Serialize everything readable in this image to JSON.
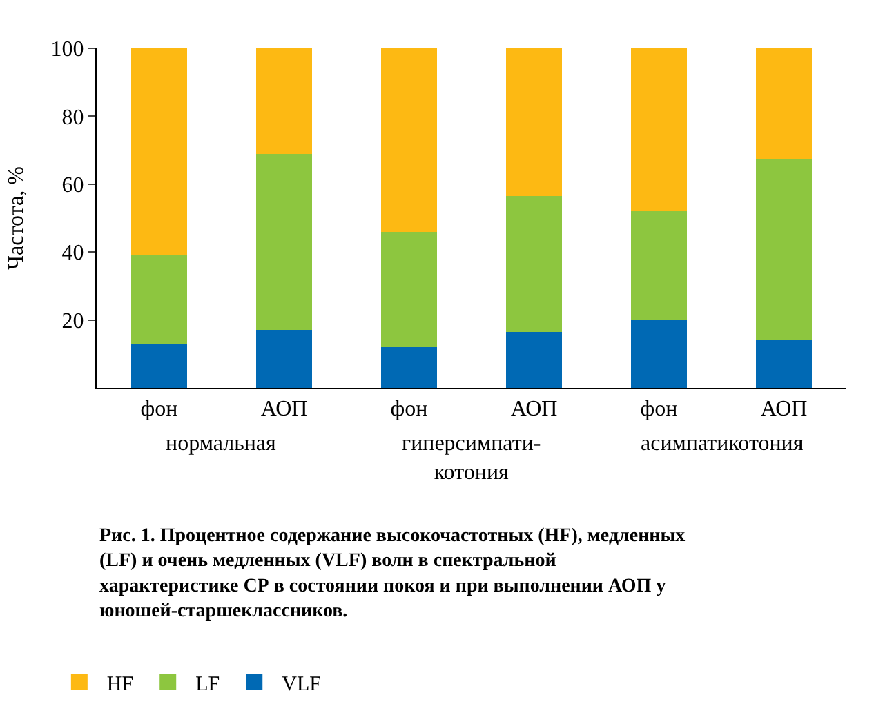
{
  "chart_data": {
    "type": "bar",
    "stacked": true,
    "ylabel": "Частота, %",
    "categories": [
      "фон",
      "АОП",
      "фон",
      "АОП",
      "фон",
      "АОП"
    ],
    "series": [
      {
        "name": "VLF",
        "color": "#0069b4",
        "values": [
          13,
          17,
          12,
          16.5,
          20,
          14
        ]
      },
      {
        "name": "LF",
        "color": "#8dc63f",
        "values": [
          26,
          52,
          34,
          40,
          32,
          53.5
        ]
      },
      {
        "name": "HF",
        "color": "#fdb913",
        "values": [
          61,
          31,
          54,
          43.5,
          48,
          32.5
        ]
      }
    ],
    "ylim": [
      0,
      100
    ],
    "yticks": [
      20,
      40,
      60,
      80,
      100
    ],
    "legend": "bottom",
    "annotations": [
      "нормальная",
      "гиперсимпати-котония",
      "асимпатикотония",
      "Рис. 1. Процентное содержание высокочастотных (HF), медленных (LF) и очень медленных (VLF) волн в спектральной характеристике СР в состоянии покоя и при выполнении АОП у юношей-старшеклассников."
    ]
  }
}
